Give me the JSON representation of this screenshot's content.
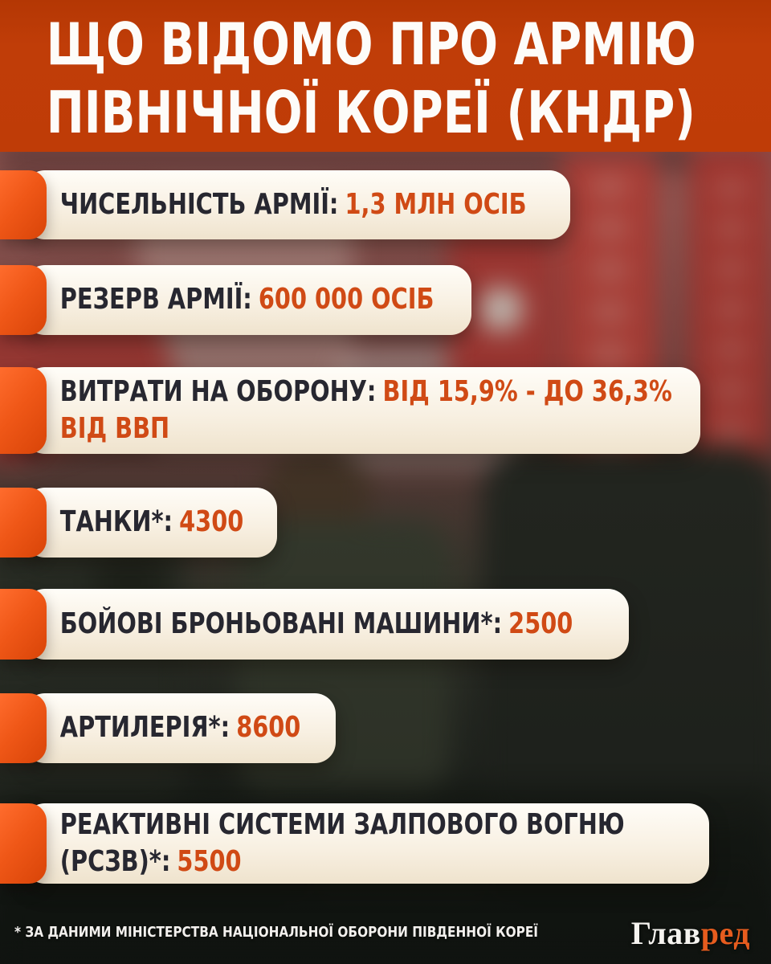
{
  "header": {
    "title_line1": "ЩО ВІДОМО ПРО АРМІЮ",
    "title_line2": "ПІВНІЧНОЇ КОРЕЇ (КНДР)"
  },
  "cards": [
    {
      "label": "ЧИСЕЛЬНІСТЬ АРМІЇ:",
      "value": "1,3 МЛН ОСІБ"
    },
    {
      "label": "РЕЗЕРВ АРМІЇ:",
      "value": "600 000 ОСІБ"
    },
    {
      "label": "ВИТРАТИ НА ОБОРОНУ:",
      "value": "ВІД 15,9% - ДО 36,3%",
      "value_line2": "ВІД ВВП"
    },
    {
      "label": "ТАНКИ*:",
      "value": "4300"
    },
    {
      "label": "БОЙОВІ БРОНЬОВАНІ МАШИНИ*:",
      "value": "2500"
    },
    {
      "label": "АРТИЛЕРІЯ*:",
      "value": "8600"
    },
    {
      "label": "РЕАКТИВНІ СИСТЕМИ ЗАЛПОВОГО ВОГНЮ",
      "label_line2": "(РСЗВ)*:",
      "value": "5500"
    }
  ],
  "footer": {
    "footnote": "* ЗА ДАНИМИ МІНІСТЕРСТВА НАЦІОНАЛЬНОЇ ОБОРОНИ ПІВДЕННОЇ КОРЕЇ",
    "logo_part1": "Глав",
    "logo_part2": "ред"
  },
  "colors": {
    "header_background": "#bf3c07",
    "tab_orange": "#ef5717",
    "accent_text": "#d04a15",
    "dark_text": "#272730",
    "card_background": "#f8f0e2",
    "footer_text": "#f3f1ee",
    "logo_accent": "#e65c1e"
  }
}
